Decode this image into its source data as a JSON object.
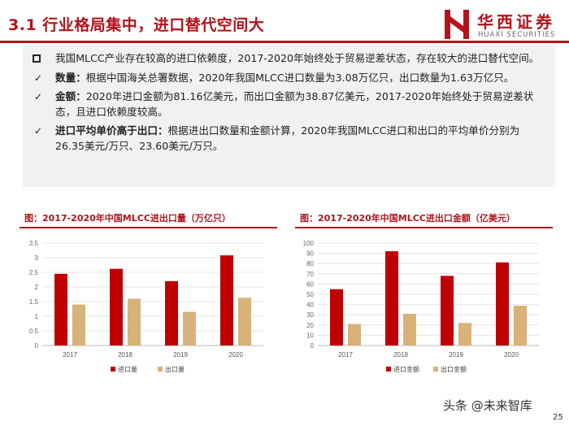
{
  "header": {
    "title": "3.1 行业格局集中，进口替代空间大",
    "logo_cn": "华西证券",
    "logo_en": "HUAXI SECURITIES"
  },
  "bullets": [
    {
      "marker": "square",
      "bold": "",
      "text": "我国MLCC产业存在较高的进口依赖度，2017-2020年始终处于贸易逆差状态，存在较大的进口替代空间。"
    },
    {
      "marker": "check",
      "bold": "数量：",
      "text": "根据中国海关总署数据，2020年我国MLCC进口数量为3.08万亿只，出口数量为1.63万亿只。"
    },
    {
      "marker": "check",
      "bold": "金额：",
      "text": "2020年进口金额为81.16亿美元，而出口金额为38.87亿美元，2017-2020年始终处于贸易逆差状态，且进口依赖度较高。"
    },
    {
      "marker": "check",
      "bold": "进口平均单价高于出口：",
      "text": "根据进出口数量和金额计算，2020年我国MLCC进口和出口的平均单价分别为26.35美元/万只、23.60美元/万只。"
    }
  ],
  "colors": {
    "import": "#c00000",
    "export": "#d9b17a",
    "brand": "#b3131b"
  },
  "chart_data": [
    {
      "type": "bar",
      "title": "图：2017-2020年中国MLCC进出口量（万亿只）",
      "categories": [
        "2017",
        "2018",
        "2019",
        "2020"
      ],
      "series": [
        {
          "name": "进口量",
          "values": [
            2.45,
            2.62,
            2.2,
            3.08
          ]
        },
        {
          "name": "出口量",
          "values": [
            1.4,
            1.6,
            1.15,
            1.63
          ]
        }
      ],
      "ylim": [
        0,
        3.5
      ],
      "yticks": [
        "0",
        "0.5",
        "1",
        "1.5",
        "2",
        "2.5",
        "3",
        "3.5"
      ],
      "legend": "bottom"
    },
    {
      "type": "bar",
      "title": "图：2017-2020年中国MLCC进出口金额（亿美元）",
      "categories": [
        "2017",
        "2018",
        "2019",
        "2020"
      ],
      "series": [
        {
          "name": "进口金额",
          "values": [
            55,
            92,
            68,
            81.16
          ]
        },
        {
          "name": "出口金额",
          "values": [
            21,
            31,
            22,
            38.87
          ]
        }
      ],
      "ylim": [
        0,
        100
      ],
      "yticks": [
        "0",
        "10",
        "20",
        "30",
        "40",
        "50",
        "60",
        "70",
        "80",
        "90",
        "100"
      ],
      "legend": "bottom"
    }
  ],
  "footer": {
    "watermark": "头条 @未来智库",
    "page_number": "25"
  }
}
